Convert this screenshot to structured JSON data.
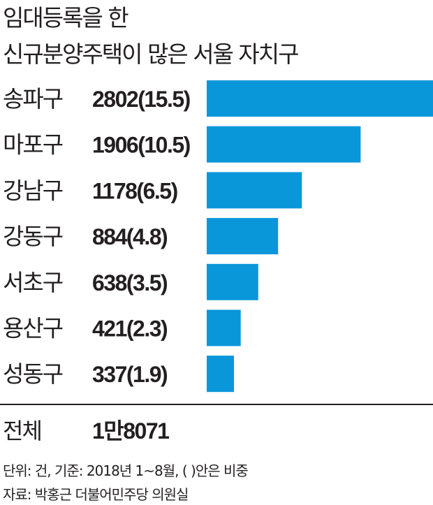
{
  "title": {
    "line1": "임대등록을 한",
    "line2": "신규분양주택이 많은 서울 자치구"
  },
  "chart_data": {
    "type": "bar",
    "orientation": "horizontal",
    "categories": [
      "송파구",
      "마포구",
      "강남구",
      "강동구",
      "서초구",
      "용산구",
      "성동구"
    ],
    "values": [
      2802,
      1906,
      1178,
      884,
      638,
      421,
      337
    ],
    "shares": [
      15.5,
      10.5,
      6.5,
      4.8,
      3.5,
      2.3,
      1.9
    ],
    "value_labels": [
      "2802(15.5)",
      "1906(10.5)",
      "1178(6.5)",
      "884(4.8)",
      "638(3.5)",
      "421(2.3)",
      "337(1.9)"
    ],
    "bar_color": "#0a97d9",
    "grid": false,
    "legend": "none"
  },
  "total": {
    "label": "전체",
    "value": "1만8071"
  },
  "notes": {
    "unit": "단위: 건, 기준: 2018년 1~8월, ( )안은 비중",
    "source": "자료: 박홍근 더불어민주당 의원실"
  }
}
